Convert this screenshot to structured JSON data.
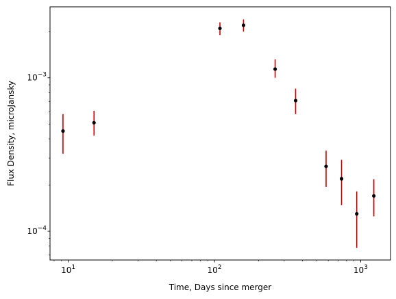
{
  "chart_data": {
    "type": "scatter",
    "title": "",
    "xlabel": "Time, Days since merger",
    "ylabel": "Flux Density, microJansky",
    "xscale": "log",
    "yscale": "log",
    "xlim": [
      7.5,
      1600
    ],
    "ylim": [
      6.5e-05,
      0.0029
    ],
    "grid": false,
    "legend": "none",
    "marker_color": "#000000",
    "errorbar_color": "#cc0000",
    "x_major_ticks": [
      {
        "value": 10,
        "base": "10",
        "exp": "1"
      },
      {
        "value": 100,
        "base": "10",
        "exp": "2"
      },
      {
        "value": 1000,
        "base": "10",
        "exp": "3"
      }
    ],
    "y_major_ticks": [
      {
        "value": 0.0001,
        "base": "10",
        "exp": "−4"
      },
      {
        "value": 0.001,
        "base": "10",
        "exp": "−3"
      }
    ],
    "points": [
      {
        "x": 9.2,
        "y": 0.00045,
        "yerr_low": 0.00032,
        "yerr_high": 0.00058
      },
      {
        "x": 15,
        "y": 0.00051,
        "yerr_low": 0.00042,
        "yerr_high": 0.00061
      },
      {
        "x": 109,
        "y": 0.0021,
        "yerr_low": 0.0019,
        "yerr_high": 0.0023
      },
      {
        "x": 158,
        "y": 0.0022,
        "yerr_low": 0.002,
        "yerr_high": 0.0024
      },
      {
        "x": 260,
        "y": 0.00114,
        "yerr_low": 0.001,
        "yerr_high": 0.00132
      },
      {
        "x": 359,
        "y": 0.00071,
        "yerr_low": 0.00058,
        "yerr_high": 0.00085
      },
      {
        "x": 580,
        "y": 0.000265,
        "yerr_low": 0.000195,
        "yerr_high": 0.000335
      },
      {
        "x": 740,
        "y": 0.00022,
        "yerr_low": 0.000148,
        "yerr_high": 0.000292
      },
      {
        "x": 940,
        "y": 0.00013,
        "yerr_low": 7.8e-05,
        "yerr_high": 0.000182
      },
      {
        "x": 1230,
        "y": 0.00017,
        "yerr_low": 0.000125,
        "yerr_high": 0.000218
      }
    ]
  }
}
